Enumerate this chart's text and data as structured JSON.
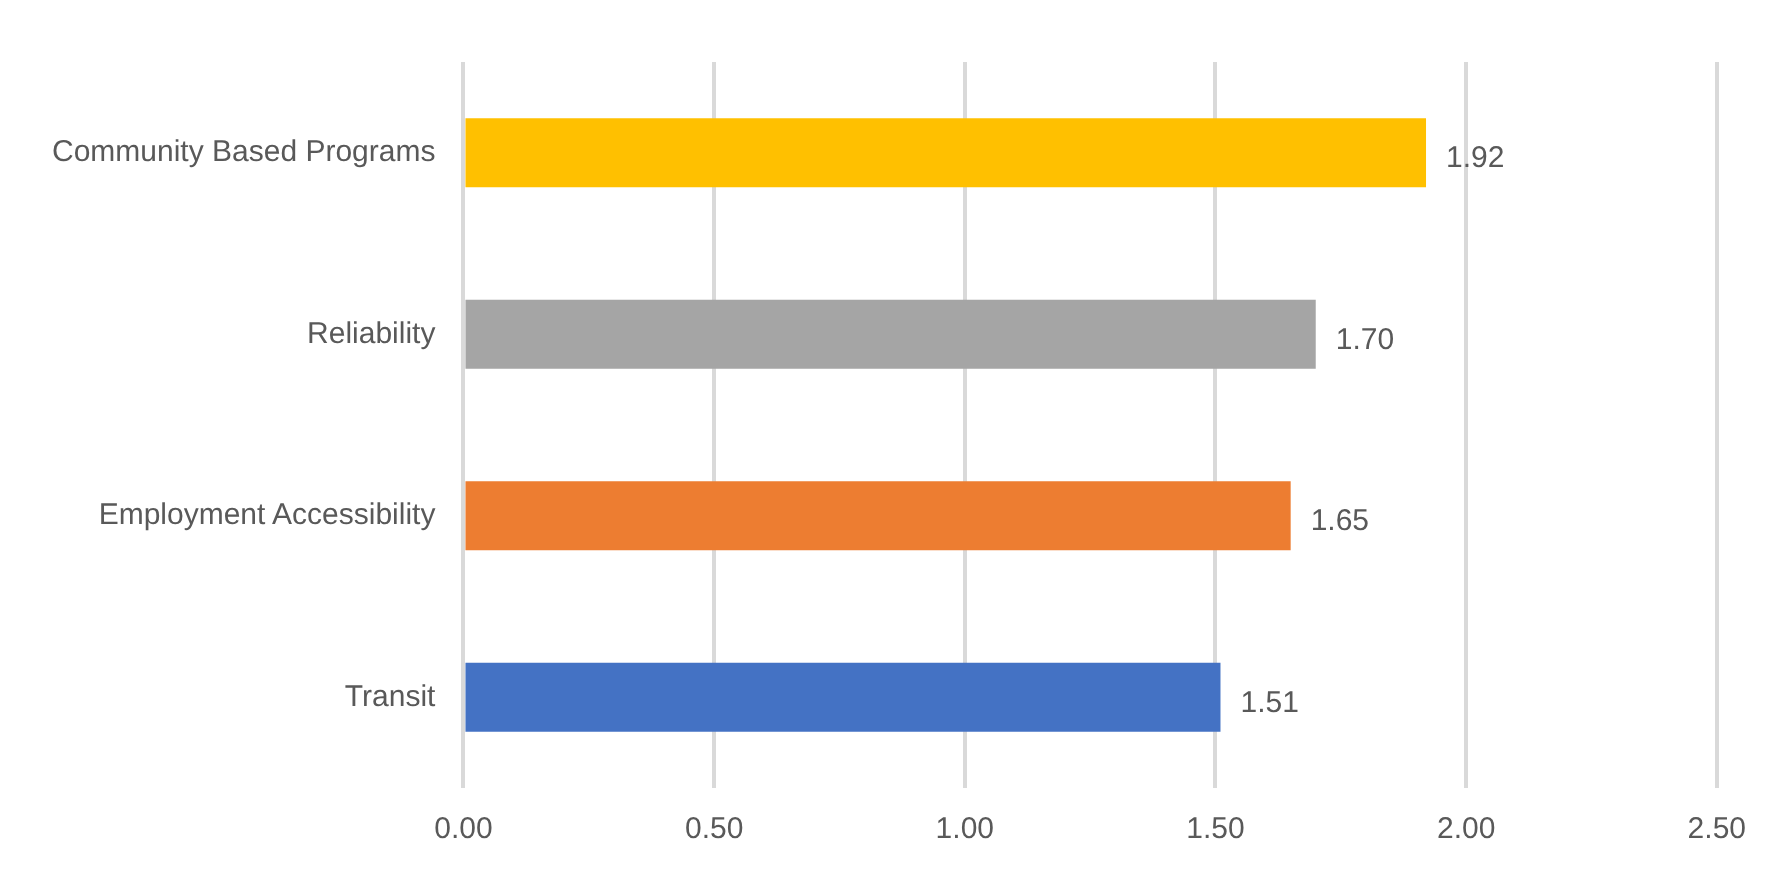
{
  "chart_data": {
    "type": "bar",
    "orientation": "horizontal",
    "categories": [
      "Community Based Programs",
      "Reliability",
      "Employment Accessibility",
      "Transit"
    ],
    "values": [
      1.92,
      1.7,
      1.65,
      1.51
    ],
    "colors": [
      "#ffc000",
      "#a5a5a5",
      "#ed7d31",
      "#4472c4"
    ],
    "value_labels": [
      "1.92",
      "1.70",
      "1.65",
      "1.51"
    ],
    "xlim": [
      0,
      2.5
    ],
    "xticks": [
      {
        "value": 0,
        "label": "0.00"
      },
      {
        "value": 0.5,
        "label": "0.50"
      },
      {
        "value": 1,
        "label": "1.00"
      },
      {
        "value": 1.5,
        "label": "1.50"
      },
      {
        "value": 2,
        "label": "2.00"
      },
      {
        "value": 2.5,
        "label": "2.50"
      }
    ],
    "grid": "x",
    "legend": false
  }
}
